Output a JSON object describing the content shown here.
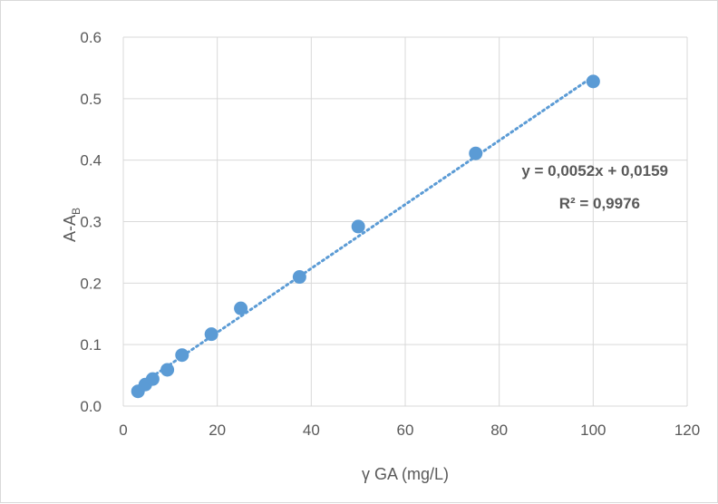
{
  "chart_data": {
    "type": "scatter",
    "xlabel": "γ GA (mg/L)",
    "ylabel": "A-A",
    "ylabel_subscript": "B",
    "xlim": [
      0,
      120
    ],
    "ylim": [
      0,
      0.6
    ],
    "x_ticks": [
      "0",
      "20",
      "40",
      "60",
      "80",
      "100",
      "120"
    ],
    "y_ticks": [
      "0.0",
      "0.1",
      "0.2",
      "0.3",
      "0.4",
      "0.5",
      "0.6"
    ],
    "grid": true,
    "legend": "none",
    "series": [
      {
        "color": "#5b9bd5",
        "x": [
          3.125,
          4.6875,
          6.25,
          9.375,
          12.5,
          18.75,
          25,
          37.5,
          50,
          75,
          100
        ],
        "y": [
          0.024,
          0.035,
          0.044,
          0.059,
          0.083,
          0.117,
          0.159,
          0.21,
          0.292,
          0.411,
          0.528
        ]
      }
    ],
    "trendline": {
      "type": "linear",
      "style": "dotted",
      "color": "#5b9bd5",
      "slope": 0.0052,
      "intercept": 0.0159,
      "x_range": [
        3.125,
        100
      ]
    },
    "annotations": {
      "equation": "y = 0,0052x + 0,0159",
      "r_squared": "R² = 0,9976"
    }
  }
}
